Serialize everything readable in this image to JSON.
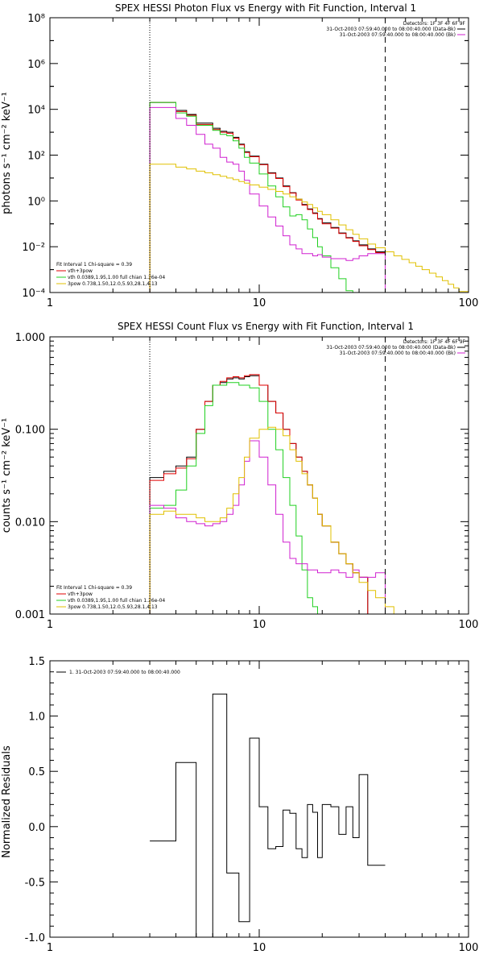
{
  "colors": {
    "black": "#000000",
    "red": "#e00000",
    "green": "#20d020",
    "magenta": "#d020d0",
    "yellow": "#e0c000"
  },
  "chart_data": [
    {
      "type": "line",
      "title": "SPEX HESSI Photon Flux vs Energy with Fit Function, Interval 1",
      "xlabel": "",
      "ylabel": "photons s⁻¹ cm⁻² keV⁻¹",
      "xscale": "log",
      "yscale": "log",
      "xlim": [
        1,
        100
      ],
      "ylim": [
        0.0001,
        100000000
      ],
      "xticklabels": [
        "1",
        "10",
        "100"
      ],
      "yticklabels": [
        "10⁻⁴",
        "10⁻²",
        "10⁰",
        "10²",
        "10⁴",
        "10⁶",
        "10⁸"
      ],
      "vlines": [
        {
          "x": 3,
          "style": "dotted"
        },
        {
          "x": 40,
          "style": "dashed"
        }
      ],
      "legend_top": [
        "Detectors: 1F 3F 4F 6F 9F",
        "31-Oct-2003 07:59:40.000 to 08:00:40.000 (Data-Bk)",
        "31-Oct-2003 07:59:40.000 to 08:00:40.000 (Bk)"
      ],
      "legend_bottom": [
        "Fit Interval 1   Chi-square = 0.39",
        "vth+3pow",
        "vth 0.0389,1.95,1.00  full chian 1.26e-04",
        "3pow 0.738,1.50,12.0,5.93,28.1,4.13"
      ],
      "series": [
        {
          "color": "black",
          "x": [
            3.0,
            3.5,
            4.0,
            4.5,
            5.0,
            5.5,
            6.0,
            6.5,
            7.0,
            7.5,
            8.0,
            8.5,
            9.0,
            10.0,
            11.0,
            12.0,
            13.0,
            14.0,
            15.0,
            16.0,
            17.0,
            18.0,
            19.0,
            20.0,
            22.0,
            24.0,
            26.0,
            28.0,
            30.0,
            33.0,
            36.0,
            40.0
          ],
          "y": [
            20000,
            20000,
            9000,
            6000,
            2500,
            2500,
            1500,
            1100,
            1000,
            600,
            300,
            140,
            90,
            40,
            17,
            10,
            4.5,
            2.3,
            1.2,
            0.7,
            0.45,
            0.3,
            0.17,
            0.11,
            0.07,
            0.04,
            0.025,
            0.018,
            0.012,
            0.008,
            0.006,
            null
          ]
        },
        {
          "color": "red",
          "x": [
            3.0,
            3.5,
            4.0,
            4.5,
            5.0,
            5.5,
            6.0,
            6.5,
            7.0,
            7.5,
            8.0,
            8.5,
            9.0,
            10.0,
            11.0,
            12.0,
            13.0,
            14.0,
            15.0,
            16.0,
            17.0,
            18.0,
            19.0,
            20.0,
            22.0,
            24.0,
            26.0,
            28.0,
            30.0,
            33.0,
            36.0,
            40.0
          ],
          "y": [
            20000,
            20000,
            8000,
            5500,
            2200,
            2200,
            1300,
            1000,
            900,
            550,
            280,
            130,
            85,
            38,
            16,
            9.5,
            4.2,
            2.2,
            1.1,
            0.65,
            0.42,
            0.28,
            0.16,
            0.1,
            0.065,
            0.038,
            0.024,
            0.017,
            0.011,
            0.0075,
            0.0055,
            null
          ]
        },
        {
          "color": "green",
          "x": [
            3.0,
            3.5,
            4.0,
            4.5,
            5.0,
            5.5,
            6.0,
            6.5,
            7.0,
            7.5,
            8.0,
            8.5,
            9.0,
            10.0,
            11.0,
            12.0,
            13.0,
            14.0,
            15.0,
            16.0,
            17.0,
            18.0,
            19.0,
            20.0,
            22.0,
            24.0,
            26.0,
            28.0
          ],
          "y": [
            20000,
            20000,
            7000,
            5000,
            2000,
            2000,
            1200,
            800,
            700,
            420,
            200,
            80,
            45,
            15,
            4.5,
            1.5,
            0.55,
            0.22,
            0.25,
            0.15,
            0.06,
            0.025,
            0.01,
            0.004,
            0.0012,
            0.0004,
            0.00012,
            null
          ]
        },
        {
          "color": "magenta",
          "x": [
            3.0,
            3.5,
            4.0,
            4.5,
            5.0,
            5.5,
            6.0,
            6.5,
            7.0,
            7.5,
            8.0,
            8.5,
            9.0,
            10.0,
            11.0,
            12.0,
            13.0,
            14.0,
            15.0,
            16.0,
            17.0,
            18.0,
            19.0,
            20.0,
            22.0,
            24.0,
            26.0,
            28.0,
            30.0,
            33.0,
            36.0,
            40.0
          ],
          "y": [
            12000,
            12000,
            4000,
            2000,
            800,
            300,
            200,
            80,
            50,
            40,
            20,
            8,
            2,
            0.6,
            0.2,
            0.08,
            0.03,
            0.012,
            0.008,
            0.005,
            0.005,
            0.004,
            0.0045,
            0.0035,
            0.003,
            0.003,
            0.0025,
            0.003,
            0.004,
            0.005,
            0.005,
            null
          ]
        },
        {
          "color": "yellow",
          "x": [
            3.0,
            3.5,
            4.0,
            4.5,
            5.0,
            5.5,
            6.0,
            6.5,
            7.0,
            7.5,
            8.0,
            8.5,
            9.0,
            10.0,
            11.0,
            12.0,
            13.0,
            14.0,
            15.0,
            16.0,
            17.0,
            18.0,
            19.0,
            20.0,
            22.0,
            24.0,
            26.0,
            28.0,
            30.0,
            33.0,
            36.0,
            40.0,
            44.0,
            48.0,
            52.0,
            56.0,
            60.0,
            65.0,
            70.0,
            75.0,
            80.0,
            85.0,
            90.0,
            100.0
          ],
          "y": [
            40,
            40,
            30,
            25,
            20,
            17,
            14,
            12,
            10,
            8.5,
            7,
            6,
            5,
            4,
            3.2,
            2.6,
            2.0,
            1.5,
            1.2,
            0.9,
            0.7,
            0.5,
            0.35,
            0.25,
            0.15,
            0.09,
            0.055,
            0.035,
            0.022,
            0.013,
            0.009,
            0.006,
            0.004,
            0.0028,
            0.002,
            0.0014,
            0.001,
            0.0007,
            0.00048,
            0.00033,
            0.00023,
            0.00016,
            0.00011,
            null
          ]
        }
      ]
    },
    {
      "type": "line",
      "title": "SPEX HESSI Count Flux vs Energy with Fit Function, Interval 1",
      "xlabel": "",
      "ylabel": "counts s⁻¹ cm⁻² keV⁻¹",
      "xscale": "log",
      "yscale": "log",
      "xlim": [
        1,
        100
      ],
      "ylim": [
        0.001,
        1.0
      ],
      "xticklabels": [
        "1",
        "10",
        "100"
      ],
      "yticklabels": [
        "0.001",
        "0.010",
        "0.100",
        "1.000"
      ],
      "vlines": [
        {
          "x": 3,
          "style": "dotted"
        },
        {
          "x": 40,
          "style": "dashed"
        }
      ],
      "legend_top": [
        "Detectors: 1F 3F 4F 6F 9F",
        "31-Oct-2003 07:59:40.000 to 08:00:40.000 (Data-Bk)",
        "31-Oct-2003 07:59:40.000 to 08:00:40.000 (Bk)"
      ],
      "legend_bottom": [
        "Fit Interval 1   Chi-square = 0.39",
        "vth+3pow",
        "vth 0.0389,1.95,1.00  full chian 1.26e-04",
        "3pow 0.738,1.50,12.0,5.93,28.1,4.13"
      ],
      "series": [
        {
          "color": "black",
          "x": [
            3.0,
            3.5,
            4.0,
            4.5,
            5.0,
            5.5,
            6.0,
            6.5,
            7.0,
            7.5,
            8.0,
            8.5,
            9.0,
            10.0,
            11.0,
            12.0,
            13.0,
            14.0,
            15.0,
            16.0,
            17.0,
            18.0,
            19.0,
            20.0,
            22.0,
            24.0,
            26.0,
            28.0,
            30.0,
            33.0,
            36.0,
            40.0
          ],
          "y": [
            0.03,
            0.035,
            0.04,
            0.05,
            0.1,
            0.2,
            0.3,
            0.32,
            0.35,
            0.36,
            0.35,
            0.37,
            0.38,
            0.3,
            0.2,
            0.15,
            0.1,
            0.07,
            0.05,
            0.035,
            0.025,
            0.018,
            0.012,
            0.009,
            0.006,
            0.0045,
            0.0035,
            0.0028,
            0.0025,
            null,
            null,
            null
          ]
        },
        {
          "color": "red",
          "x": [
            3.0,
            3.5,
            4.0,
            4.5,
            5.0,
            5.5,
            6.0,
            6.5,
            7.0,
            7.5,
            8.0,
            8.5,
            9.0,
            10.0,
            11.0,
            12.0,
            13.0,
            14.0,
            15.0,
            16.0,
            17.0,
            18.0,
            19.0,
            20.0,
            22.0,
            24.0,
            26.0,
            28.0,
            30.0,
            33.0,
            36.0,
            40.0
          ],
          "y": [
            0.028,
            0.033,
            0.038,
            0.048,
            0.1,
            0.2,
            0.3,
            0.33,
            0.36,
            0.37,
            0.36,
            0.38,
            0.39,
            0.3,
            0.2,
            0.15,
            0.1,
            0.07,
            0.05,
            0.035,
            0.025,
            0.018,
            0.012,
            0.009,
            0.006,
            0.0045,
            0.0035,
            0.0028,
            0.0025,
            null,
            null,
            null
          ]
        },
        {
          "color": "green",
          "x": [
            3.0,
            3.5,
            4.0,
            4.5,
            5.0,
            5.5,
            6.0,
            6.5,
            7.0,
            7.5,
            8.0,
            8.5,
            9.0,
            10.0,
            11.0,
            12.0,
            13.0,
            14.0,
            15.0,
            16.0,
            17.0,
            18.0,
            19.0,
            20.0
          ],
          "y": [
            0.014,
            0.015,
            0.022,
            0.04,
            0.09,
            0.18,
            0.3,
            0.3,
            0.32,
            0.32,
            0.3,
            0.3,
            0.28,
            0.2,
            0.1,
            0.06,
            0.03,
            0.015,
            0.007,
            0.003,
            0.0015,
            0.0012,
            0.001,
            null
          ]
        },
        {
          "color": "magenta",
          "x": [
            3.0,
            3.5,
            4.0,
            4.5,
            5.0,
            5.5,
            6.0,
            6.5,
            7.0,
            7.5,
            8.0,
            8.5,
            9.0,
            10.0,
            11.0,
            12.0,
            13.0,
            14.0,
            15.0,
            16.0,
            17.0,
            18.0,
            19.0,
            20.0,
            22.0,
            24.0,
            26.0,
            28.0,
            30.0,
            33.0,
            36.0,
            40.0
          ],
          "y": [
            0.015,
            0.014,
            0.011,
            0.01,
            0.0095,
            0.009,
            0.0095,
            0.01,
            0.012,
            0.015,
            0.025,
            0.045,
            0.075,
            0.05,
            0.025,
            0.012,
            0.006,
            0.004,
            0.0035,
            0.0035,
            0.003,
            0.003,
            0.0028,
            0.0028,
            0.003,
            0.0028,
            0.0025,
            0.003,
            0.0025,
            0.0025,
            0.0028,
            null
          ]
        },
        {
          "color": "yellow",
          "x": [
            3.0,
            3.5,
            4.0,
            4.5,
            5.0,
            5.5,
            6.0,
            6.5,
            7.0,
            7.5,
            8.0,
            8.5,
            9.0,
            10.0,
            11.0,
            12.0,
            13.0,
            14.0,
            15.0,
            16.0,
            17.0,
            18.0,
            19.0,
            20.0,
            22.0,
            24.0,
            26.0,
            28.0,
            30.0,
            33.0,
            36.0,
            40.0,
            44.0
          ],
          "y": [
            0.012,
            0.013,
            0.012,
            0.012,
            0.011,
            0.01,
            0.01,
            0.011,
            0.014,
            0.02,
            0.03,
            0.05,
            0.08,
            0.1,
            0.105,
            0.1,
            0.085,
            0.06,
            0.045,
            0.033,
            0.025,
            0.018,
            0.012,
            0.009,
            0.006,
            0.0045,
            0.0035,
            0.0028,
            0.0022,
            0.0018,
            0.0015,
            0.0012,
            null
          ]
        }
      ]
    },
    {
      "type": "line",
      "title": "",
      "xlabel": "",
      "ylabel": "Normalized Residuals",
      "xscale": "log",
      "yscale": "linear",
      "xlim": [
        1,
        100
      ],
      "ylim": [
        -1.0,
        1.5
      ],
      "xticklabels": [
        "1",
        "10",
        "100"
      ],
      "yticklabels": [
        "-1.0",
        "-0.5",
        "0.0",
        "0.5",
        "1.0",
        "1.5"
      ],
      "legend_top": [
        "1. 31-Oct-2003 07:59:40.000 to 08:00:40.000"
      ],
      "series": [
        {
          "color": "black",
          "x": [
            3.0,
            3.5,
            4.0,
            4.5,
            5.0,
            5.5,
            6.0,
            6.5,
            7.0,
            7.5,
            8.0,
            8.5,
            9.0,
            10.0,
            11.0,
            12.0,
            13.0,
            14.0,
            15.0,
            16.0,
            17.0,
            18.0,
            19.0,
            20.0,
            22.0,
            24.0,
            26.0,
            28.0,
            30.0,
            33.0,
            36.0,
            40.0
          ],
          "y": [
            -0.13,
            -0.13,
            0.58,
            0.58,
            -1.03,
            -1.03,
            1.2,
            1.2,
            -0.42,
            -0.42,
            -0.86,
            -0.86,
            0.8,
            0.18,
            -0.2,
            -0.18,
            0.15,
            0.12,
            -0.2,
            -0.28,
            0.2,
            0.13,
            -0.28,
            0.2,
            0.18,
            -0.07,
            0.18,
            -0.1,
            0.47,
            -0.35,
            -0.35,
            null
          ]
        }
      ]
    }
  ]
}
